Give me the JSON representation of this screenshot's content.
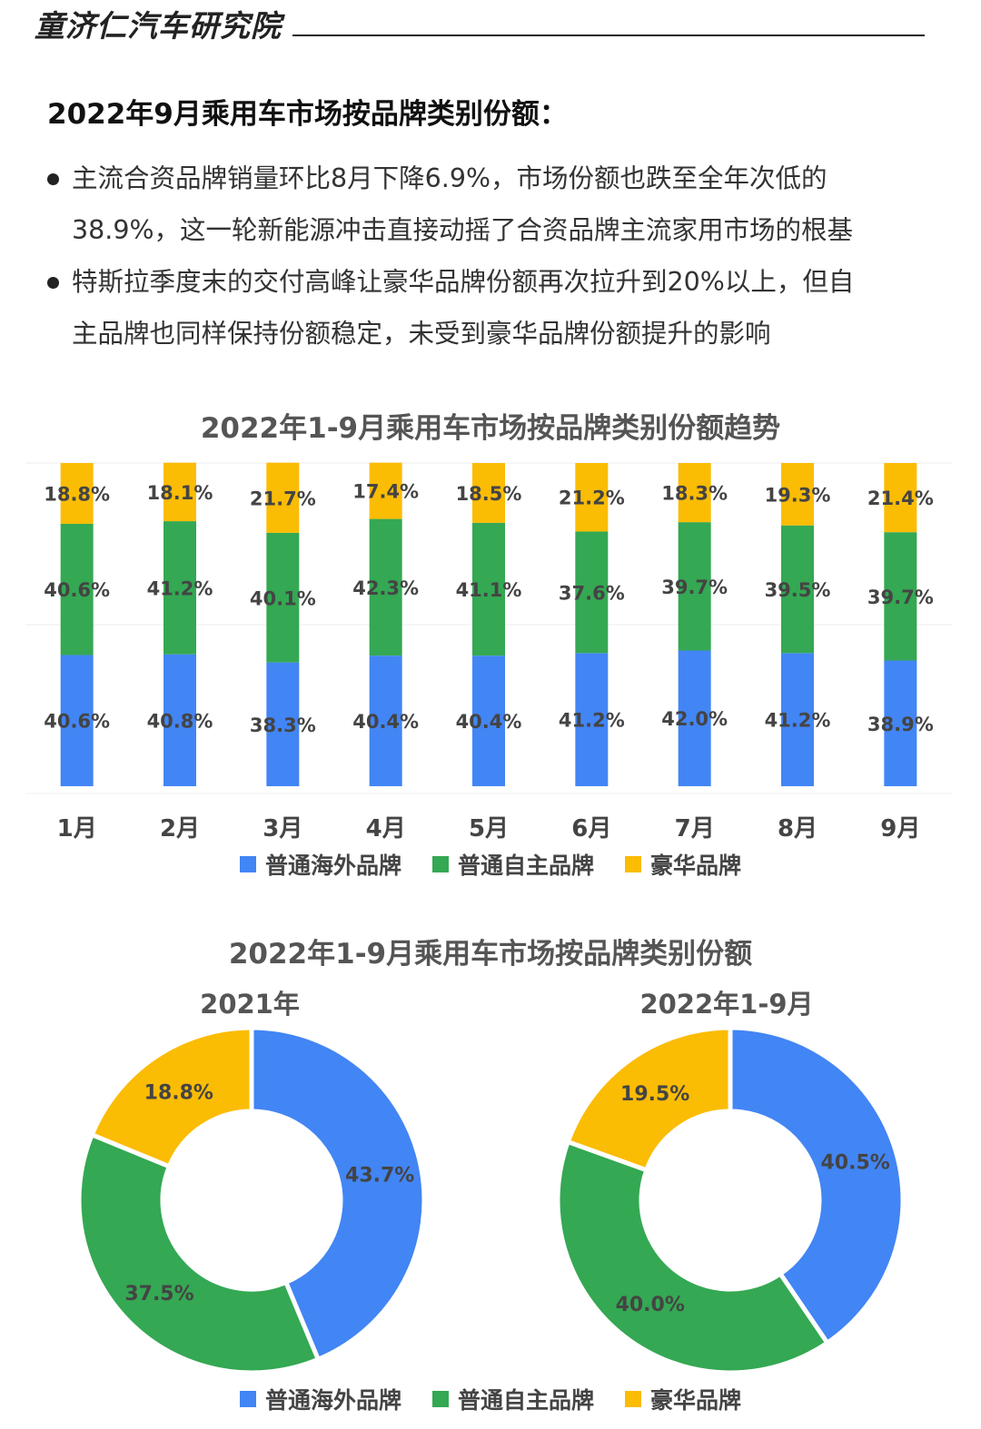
{
  "header": {
    "brand": "童济仁汽车研究院"
  },
  "section": {
    "title": "2022年9月乘用车市场按品牌类别份额：",
    "bullets": [
      {
        "line1": "主流合资品牌销量环比8月下降6.9%，市场份额也跌至全年次低的",
        "line2": "38.9%，这一轮新能源冲击直接动摇了合资品牌主流家用市场的根基"
      },
      {
        "line1": "特斯拉季度末的交付高峰让豪华品牌份额再次拉升到20%以上，但自",
        "line2": "主品牌也同样保持份额稳定，未受到豪华品牌份额提升的影响"
      }
    ]
  },
  "legend": {
    "items": [
      {
        "label": "普通海外品牌",
        "color": "#4285F4"
      },
      {
        "label": "普通自主品牌",
        "color": "#34A853"
      },
      {
        "label": "豪华品牌",
        "color": "#FBBC04"
      }
    ]
  },
  "chart_data": [
    {
      "type": "bar",
      "stacked": true,
      "title": "2022年1-9月乘用车市场按品牌类别份额趋势",
      "categories": [
        "1月",
        "2月",
        "3月",
        "4月",
        "5月",
        "6月",
        "7月",
        "8月",
        "9月"
      ],
      "series": [
        {
          "name": "普通海外品牌",
          "color": "#4285F4",
          "values": [
            40.6,
            40.8,
            38.3,
            40.4,
            40.4,
            41.2,
            42.0,
            41.2,
            38.9
          ],
          "labels": [
            "40.6%",
            "40.8%",
            "38.3%",
            "40.4%",
            "40.4%",
            "41.2%",
            "42.0%",
            "41.2%",
            "38.9%"
          ]
        },
        {
          "name": "普通自主品牌",
          "color": "#34A853",
          "values": [
            40.6,
            41.2,
            40.1,
            42.3,
            41.1,
            37.6,
            39.7,
            39.5,
            39.7
          ],
          "labels": [
            "40.6%",
            "41.2%",
            "40.1%",
            "42.3%",
            "41.1%",
            "37.6%",
            "39.7%",
            "39.5%",
            "39.7%"
          ]
        },
        {
          "name": "豪华品牌",
          "color": "#FBBC04",
          "values": [
            18.8,
            18.1,
            21.7,
            17.4,
            18.5,
            21.2,
            18.3,
            19.3,
            21.4
          ],
          "labels": [
            "18.8%",
            "18.1%",
            "21.7%",
            "17.4%",
            "18.5%",
            "21.2%",
            "18.3%",
            "19.3%",
            "21.4%"
          ]
        }
      ],
      "ylim": [
        0,
        100
      ],
      "legend_position": "bottom"
    },
    {
      "type": "pie",
      "title": "2022年1-9月乘用车市场按品牌类别份额",
      "subplots": [
        {
          "title": "2021年",
          "slices": [
            {
              "name": "普通海外品牌",
              "color": "#4285F4",
              "value": 43.7,
              "label": "43.7%"
            },
            {
              "name": "普通自主品牌",
              "color": "#34A853",
              "value": 37.5,
              "label": "37.5%"
            },
            {
              "name": "豪华品牌",
              "color": "#FBBC04",
              "value": 18.8,
              "label": "18.8%"
            }
          ]
        },
        {
          "title": "2022年1-9月",
          "slices": [
            {
              "name": "普通海外品牌",
              "color": "#4285F4",
              "value": 40.5,
              "label": "40.5%"
            },
            {
              "name": "普通自主品牌",
              "color": "#34A853",
              "value": 40.0,
              "label": "40.0%"
            },
            {
              "name": "豪华品牌",
              "color": "#FBBC04",
              "value": 19.5,
              "label": "19.5%"
            }
          ]
        }
      ],
      "donut": true,
      "legend_position": "bottom"
    }
  ]
}
